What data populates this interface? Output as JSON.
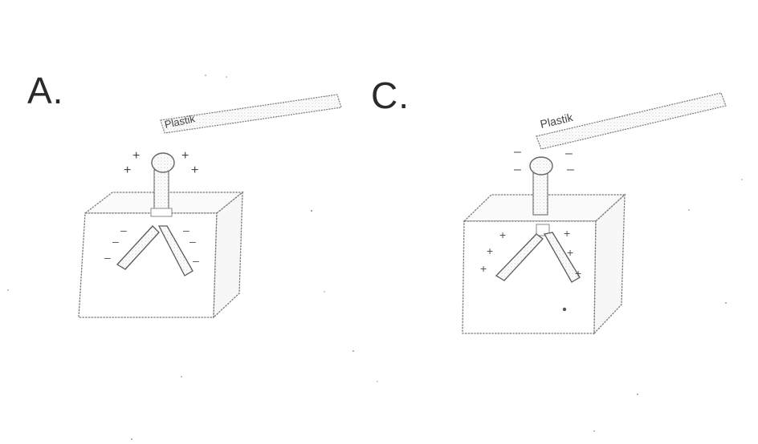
{
  "panels": [
    {
      "id": "A",
      "label": "A.",
      "rod_label": "Plastik",
      "knob_charges": [
        "+",
        "+",
        "+",
        "+"
      ],
      "box_charges": [
        "–",
        "–",
        "–",
        "–",
        "–",
        "–"
      ]
    },
    {
      "id": "C",
      "label": "C.",
      "rod_label": "Plastik",
      "knob_charges": [
        "–",
        "–",
        "–",
        "–"
      ],
      "box_charges": [
        "+",
        "+",
        "+",
        "+",
        "+",
        "+"
      ]
    }
  ],
  "colors": {
    "line": "#555555",
    "light_line": "#8a8a8a",
    "text": "#333333",
    "background": "#ffffff"
  }
}
